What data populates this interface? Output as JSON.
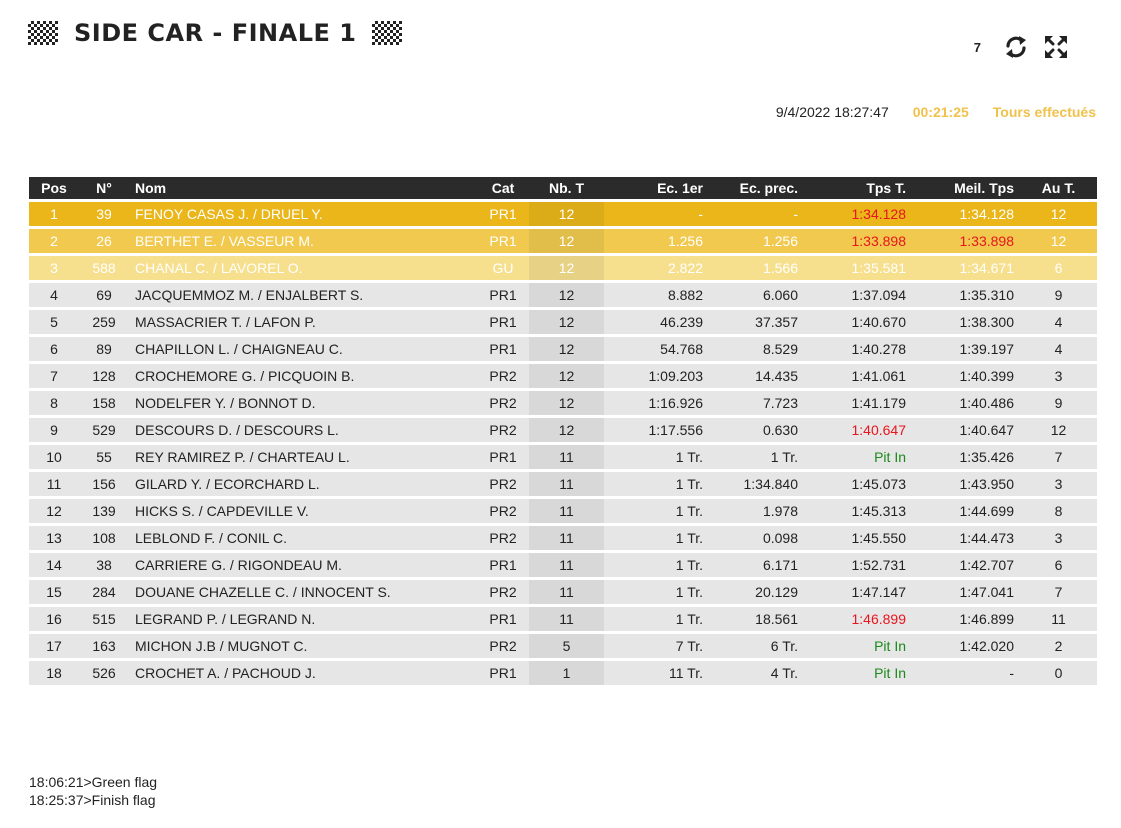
{
  "header": {
    "title": "SIDE CAR - FINALE 1",
    "counter": "7",
    "refresh_icon": "refresh-icon",
    "fullscreen_icon": "fullscreen-icon"
  },
  "info": {
    "datetime": "9/4/2022 18:27:47",
    "elapsed": "00:21:25",
    "laps_done": "Tours effectués"
  },
  "columns": {
    "pos": "Pos",
    "num": "N°",
    "nom": "Nom",
    "cat": "Cat",
    "nbt": "Nb. T",
    "ec1": "Ec. 1er",
    "ecp": "Ec. prec.",
    "tps": "Tps T.",
    "meil": "Meil. Tps",
    "aut": "Au T."
  },
  "rows": [
    {
      "pos": "1",
      "num": "39",
      "nom": "FENOY CASAS J. / DRUEL Y.",
      "cat": "PR1",
      "nbt": "12",
      "ec1": "-",
      "ecp": "-",
      "tps": "1:34.128",
      "meil": "1:34.128",
      "aut": "12"
    },
    {
      "pos": "2",
      "num": "26",
      "nom": "BERTHET E. / VASSEUR M.",
      "cat": "PR1",
      "nbt": "12",
      "ec1": "1.256",
      "ecp": "1.256",
      "tps": "1:33.898",
      "meil": "1:33.898",
      "aut": "12"
    },
    {
      "pos": "3",
      "num": "588",
      "nom": "CHANAL C. / LAVOREL O.",
      "cat": "GU",
      "nbt": "12",
      "ec1": "2.822",
      "ecp": "1.566",
      "tps": "1:35.581",
      "meil": "1:34.671",
      "aut": "6"
    },
    {
      "pos": "4",
      "num": "69",
      "nom": "JACQUEMMOZ M. / ENJALBERT S.",
      "cat": "PR1",
      "nbt": "12",
      "ec1": "8.882",
      "ecp": "6.060",
      "tps": "1:37.094",
      "meil": "1:35.310",
      "aut": "9"
    },
    {
      "pos": "5",
      "num": "259",
      "nom": "MASSACRIER T. / LAFON P.",
      "cat": "PR1",
      "nbt": "12",
      "ec1": "46.239",
      "ecp": "37.357",
      "tps": "1:40.670",
      "meil": "1:38.300",
      "aut": "4"
    },
    {
      "pos": "6",
      "num": "89",
      "nom": "CHAPILLON L. / CHAIGNEAU C.",
      "cat": "PR1",
      "nbt": "12",
      "ec1": "54.768",
      "ecp": "8.529",
      "tps": "1:40.278",
      "meil": "1:39.197",
      "aut": "4"
    },
    {
      "pos": "7",
      "num": "128",
      "nom": "CROCHEMORE G. / PICQUOIN B.",
      "cat": "PR2",
      "nbt": "12",
      "ec1": "1:09.203",
      "ecp": "14.435",
      "tps": "1:41.061",
      "meil": "1:40.399",
      "aut": "3"
    },
    {
      "pos": "8",
      "num": "158",
      "nom": "NODELFER Y. / BONNOT D.",
      "cat": "PR2",
      "nbt": "12",
      "ec1": "1:16.926",
      "ecp": "7.723",
      "tps": "1:41.179",
      "meil": "1:40.486",
      "aut": "9"
    },
    {
      "pos": "9",
      "num": "529",
      "nom": "DESCOURS D. / DESCOURS L.",
      "cat": "PR2",
      "nbt": "12",
      "ec1": "1:17.556",
      "ecp": "0.630",
      "tps": "1:40.647",
      "meil": "1:40.647",
      "aut": "12"
    },
    {
      "pos": "10",
      "num": "55",
      "nom": "REY RAMIREZ P. / CHARTEAU L.",
      "cat": "PR1",
      "nbt": "11",
      "ec1": "1 Tr.",
      "ecp": "1 Tr.",
      "tps": "Pit In",
      "meil": "1:35.426",
      "aut": "7"
    },
    {
      "pos": "11",
      "num": "156",
      "nom": "GILARD Y. / ECORCHARD L.",
      "cat": "PR2",
      "nbt": "11",
      "ec1": "1 Tr.",
      "ecp": "1:34.840",
      "tps": "1:45.073",
      "meil": "1:43.950",
      "aut": "3"
    },
    {
      "pos": "12",
      "num": "139",
      "nom": "HICKS S. / CAPDEVILLE V.",
      "cat": "PR2",
      "nbt": "11",
      "ec1": "1 Tr.",
      "ecp": "1.978",
      "tps": "1:45.313",
      "meil": "1:44.699",
      "aut": "8"
    },
    {
      "pos": "13",
      "num": "108",
      "nom": "LEBLOND F. / CONIL C.",
      "cat": "PR2",
      "nbt": "11",
      "ec1": "1 Tr.",
      "ecp": "0.098",
      "tps": "1:45.550",
      "meil": "1:44.473",
      "aut": "3"
    },
    {
      "pos": "14",
      "num": "38",
      "nom": "CARRIERE G. / RIGONDEAU M.",
      "cat": "PR1",
      "nbt": "11",
      "ec1": "1 Tr.",
      "ecp": "6.171",
      "tps": "1:52.731",
      "meil": "1:42.707",
      "aut": "6"
    },
    {
      "pos": "15",
      "num": "284",
      "nom": "DOUANE CHAZELLE C. / INNOCENT S.",
      "cat": "PR2",
      "nbt": "11",
      "ec1": "1 Tr.",
      "ecp": "20.129",
      "tps": "1:47.147",
      "meil": "1:47.041",
      "aut": "7"
    },
    {
      "pos": "16",
      "num": "515",
      "nom": "LEGRAND P. / LEGRAND N.",
      "cat": "PR1",
      "nbt": "11",
      "ec1": "1 Tr.",
      "ecp": "18.561",
      "tps": "1:46.899",
      "meil": "1:46.899",
      "aut": "11"
    },
    {
      "pos": "17",
      "num": "163",
      "nom": "MICHON J.B / MUGNOT C.",
      "cat": "PR2",
      "nbt": "5",
      "ec1": "7 Tr.",
      "ecp": "6 Tr.",
      "tps": "Pit In",
      "meil": "1:42.020",
      "aut": "2"
    },
    {
      "pos": "18",
      "num": "526",
      "nom": "CROCHET A. / PACHOUD J.",
      "cat": "PR1",
      "nbt": "1",
      "ec1": "11 Tr.",
      "ecp": "4 Tr.",
      "tps": "Pit In",
      "meil": "-",
      "aut": "0"
    }
  ],
  "colors": {
    "red_cells": [
      "0.tps",
      "1.tps",
      "1.meil",
      "8.tps",
      "15.tps"
    ],
    "green_cells": [
      "9.tps",
      "16.tps",
      "17.tps"
    ],
    "podium": [
      "#eab61a",
      "#f0c94e",
      "#f6df8d"
    ],
    "accent": "#f0c24b"
  },
  "log": [
    "18:06:21>Green flag",
    "18:25:37>Finish flag"
  ]
}
